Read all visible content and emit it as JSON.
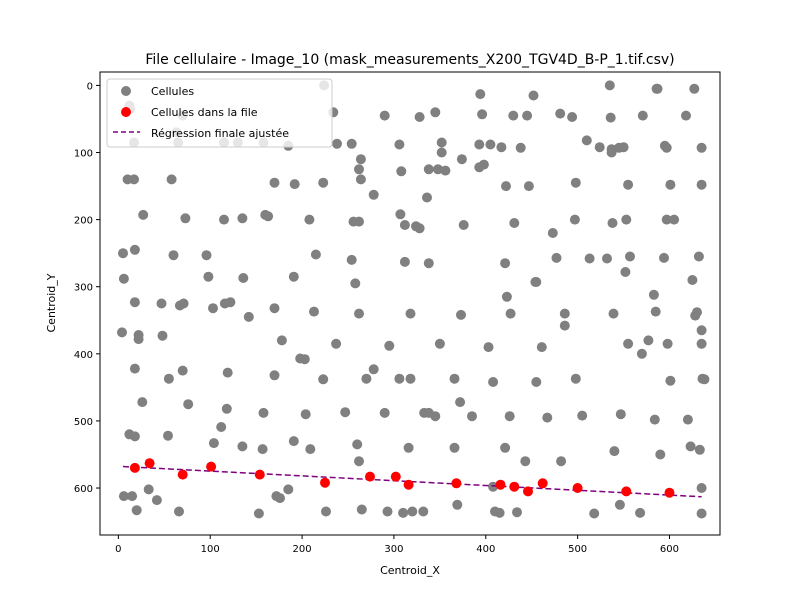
{
  "chart_data": {
    "type": "scatter",
    "title": "File cellulaire - Image_10 (mask_measurements_X200_TGV4D_B-P_1.tif.csv)",
    "xlabel": "Centroid_X",
    "ylabel": "Centroid_Y",
    "xlim": [
      -20,
      655
    ],
    "ylim_inverted": [
      -20,
      670
    ],
    "x_ticks": [
      0,
      100,
      200,
      300,
      400,
      500,
      600
    ],
    "y_ticks": [
      0,
      100,
      200,
      300,
      400,
      500,
      600
    ],
    "legend_position": "upper-left",
    "colors": {
      "cells": "#808080",
      "file": "#ff0000",
      "regression": "#800080"
    },
    "series": [
      {
        "name": "Cellules",
        "color": "#808080",
        "points": [
          [
            12,
            30
          ],
          [
            13,
            35
          ],
          [
            17,
            85
          ],
          [
            10,
            140
          ],
          [
            17,
            140
          ],
          [
            27,
            193
          ],
          [
            5,
            250
          ],
          [
            18,
            245
          ],
          [
            6,
            288
          ],
          [
            18,
            323
          ],
          [
            4,
            368
          ],
          [
            22,
            378
          ],
          [
            22,
            372
          ],
          [
            18,
            422
          ],
          [
            26,
            472
          ],
          [
            12,
            520
          ],
          [
            18,
            523
          ],
          [
            6,
            612
          ],
          [
            15,
            612
          ],
          [
            20,
            633
          ],
          [
            33,
            602
          ],
          [
            42,
            618
          ],
          [
            66,
            635
          ],
          [
            47,
            325
          ],
          [
            48,
            373
          ],
          [
            55,
            437
          ],
          [
            54,
            522
          ],
          [
            58,
            140
          ],
          [
            60,
            253
          ],
          [
            63,
            70
          ],
          [
            65,
            85
          ],
          [
            67,
            328
          ],
          [
            71,
            325
          ],
          [
            70,
            425
          ],
          [
            76,
            475
          ],
          [
            73,
            198
          ],
          [
            70,
            45
          ],
          [
            96,
            253
          ],
          [
            98,
            285
          ],
          [
            103,
            332
          ],
          [
            104,
            533
          ],
          [
            112,
            509
          ],
          [
            116,
            325
          ],
          [
            118,
            482
          ],
          [
            119,
            428
          ],
          [
            122,
            323
          ],
          [
            115,
            85
          ],
          [
            115,
            200
          ],
          [
            130,
            85
          ],
          [
            135,
            198
          ],
          [
            136,
            287
          ],
          [
            142,
            345
          ],
          [
            135,
            538
          ],
          [
            153,
            638
          ],
          [
            158,
            488
          ],
          [
            157,
            542
          ],
          [
            160,
            193
          ],
          [
            158,
            85
          ],
          [
            163,
            195
          ],
          [
            170,
            145
          ],
          [
            170,
            332
          ],
          [
            170,
            432
          ],
          [
            172,
            612
          ],
          [
            176,
            615
          ],
          [
            178,
            380
          ],
          [
            185,
            602
          ],
          [
            185,
            90
          ],
          [
            191,
            285
          ],
          [
            191,
            530
          ],
          [
            192,
            147
          ],
          [
            198,
            407
          ],
          [
            203,
            408
          ],
          [
            204,
            490
          ],
          [
            209,
            542
          ],
          [
            208,
            200
          ],
          [
            213,
            337
          ],
          [
            215,
            252
          ],
          [
            223,
            145
          ],
          [
            223,
            438
          ],
          [
            224,
            0
          ],
          [
            226,
            635
          ],
          [
            234,
            40
          ],
          [
            238,
            87
          ],
          [
            237,
            385
          ],
          [
            247,
            487
          ],
          [
            254,
            87
          ],
          [
            254,
            260
          ],
          [
            256,
            203
          ],
          [
            258,
            295
          ],
          [
            262,
            203
          ],
          [
            262,
            340
          ],
          [
            262,
            125
          ],
          [
            262,
            560
          ],
          [
            264,
            110
          ],
          [
            264,
            140
          ],
          [
            260,
            535
          ],
          [
            265,
            632
          ],
          [
            270,
            437
          ],
          [
            278,
            163
          ],
          [
            278,
            423
          ],
          [
            290,
            45
          ],
          [
            290,
            488
          ],
          [
            293,
            635
          ],
          [
            295,
            388
          ],
          [
            306,
            437
          ],
          [
            307,
            192
          ],
          [
            306,
            88
          ],
          [
            308,
            128
          ],
          [
            310,
            637
          ],
          [
            312,
            208
          ],
          [
            312,
            263
          ],
          [
            316,
            540
          ],
          [
            318,
            437
          ],
          [
            318,
            340
          ],
          [
            320,
            635
          ],
          [
            324,
            210
          ],
          [
            328,
            213
          ],
          [
            328,
            47
          ],
          [
            332,
            635
          ],
          [
            333,
            488
          ],
          [
            336,
            167
          ],
          [
            338,
            125
          ],
          [
            338,
            265
          ],
          [
            338,
            488
          ],
          [
            345,
            493
          ],
          [
            345,
            40
          ],
          [
            348,
            125
          ],
          [
            350,
            385
          ],
          [
            352,
            85
          ],
          [
            352,
            100
          ],
          [
            356,
            127
          ],
          [
            366,
            437
          ],
          [
            366,
            540
          ],
          [
            369,
            625
          ],
          [
            372,
            472
          ],
          [
            373,
            342
          ],
          [
            374,
            110
          ],
          [
            376,
            208
          ],
          [
            385,
            493
          ],
          [
            393,
            88
          ],
          [
            393,
            122
          ],
          [
            394,
            13
          ],
          [
            396,
            43
          ],
          [
            398,
            118
          ],
          [
            403,
            390
          ],
          [
            405,
            88
          ],
          [
            408,
            442
          ],
          [
            408,
            598
          ],
          [
            410,
            635
          ],
          [
            415,
            637
          ],
          [
            417,
            92
          ],
          [
            421,
            540
          ],
          [
            421,
            265
          ],
          [
            422,
            150
          ],
          [
            423,
            315
          ],
          [
            426,
            493
          ],
          [
            427,
            340
          ],
          [
            430,
            45
          ],
          [
            431,
            205
          ],
          [
            434,
            636
          ],
          [
            438,
            93
          ],
          [
            443,
            560
          ],
          [
            445,
            45
          ],
          [
            447,
            150
          ],
          [
            452,
            15
          ],
          [
            454,
            293
          ],
          [
            455,
            293
          ],
          [
            455,
            442
          ],
          [
            461,
            390
          ],
          [
            467,
            495
          ],
          [
            473,
            220
          ],
          [
            477,
            257
          ],
          [
            481,
            42
          ],
          [
            482,
            560
          ],
          [
            486,
            340
          ],
          [
            486,
            358
          ],
          [
            494,
            47
          ],
          [
            497,
            200
          ],
          [
            498,
            145
          ],
          [
            498,
            437
          ],
          [
            505,
            492
          ],
          [
            510,
            82
          ],
          [
            513,
            258
          ],
          [
            518,
            638
          ],
          [
            524,
            92
          ],
          [
            532,
            258
          ],
          [
            535,
            0
          ],
          [
            536,
            48
          ],
          [
            537,
            95
          ],
          [
            537,
            100
          ],
          [
            538,
            205
          ],
          [
            539,
            340
          ],
          [
            540,
            545
          ],
          [
            545,
            93
          ],
          [
            546,
            625
          ],
          [
            547,
            490
          ],
          [
            550,
            92
          ],
          [
            552,
            278
          ],
          [
            553,
            200
          ],
          [
            555,
            385
          ],
          [
            557,
            255
          ],
          [
            555,
            148
          ],
          [
            568,
            637
          ],
          [
            570,
            400
          ],
          [
            571,
            45
          ],
          [
            577,
            380
          ],
          [
            583,
            312
          ],
          [
            584,
            498
          ],
          [
            585,
            337
          ],
          [
            586,
            5
          ],
          [
            587,
            5
          ],
          [
            590,
            550
          ],
          [
            594,
            257
          ],
          [
            595,
            90
          ],
          [
            597,
            93
          ],
          [
            597,
            200
          ],
          [
            598,
            385
          ],
          [
            601,
            440
          ],
          [
            601,
            148
          ],
          [
            605,
            200
          ],
          [
            618,
            45
          ],
          [
            620,
            498
          ],
          [
            623,
            538
          ],
          [
            625,
            290
          ],
          [
            627,
            5
          ],
          [
            628,
            343
          ],
          [
            630,
            338
          ],
          [
            632,
            255
          ],
          [
            635,
            93
          ],
          [
            635,
            148
          ],
          [
            635,
            365
          ],
          [
            635,
            385
          ],
          [
            635,
            638
          ],
          [
            636,
            437
          ],
          [
            638,
            438
          ],
          [
            635,
            600
          ],
          [
            633,
            543
          ]
        ]
      },
      {
        "name": "Cellules dans la file",
        "color": "#ff0000",
        "points": [
          [
            18,
            570
          ],
          [
            34,
            563
          ],
          [
            70,
            580
          ],
          [
            101,
            568
          ],
          [
            154,
            580
          ],
          [
            225,
            592
          ],
          [
            274,
            583
          ],
          [
            302,
            583
          ],
          [
            316,
            595
          ],
          [
            368,
            593
          ],
          [
            416,
            595
          ],
          [
            431,
            598
          ],
          [
            446,
            605
          ],
          [
            462,
            593
          ],
          [
            500,
            600
          ],
          [
            553,
            605
          ],
          [
            600,
            607
          ]
        ]
      }
    ],
    "regression": {
      "name": "Régression finale ajustée",
      "color": "#800080",
      "style": "dashed",
      "points": [
        [
          5,
          568
        ],
        [
          635,
          613
        ]
      ]
    }
  }
}
